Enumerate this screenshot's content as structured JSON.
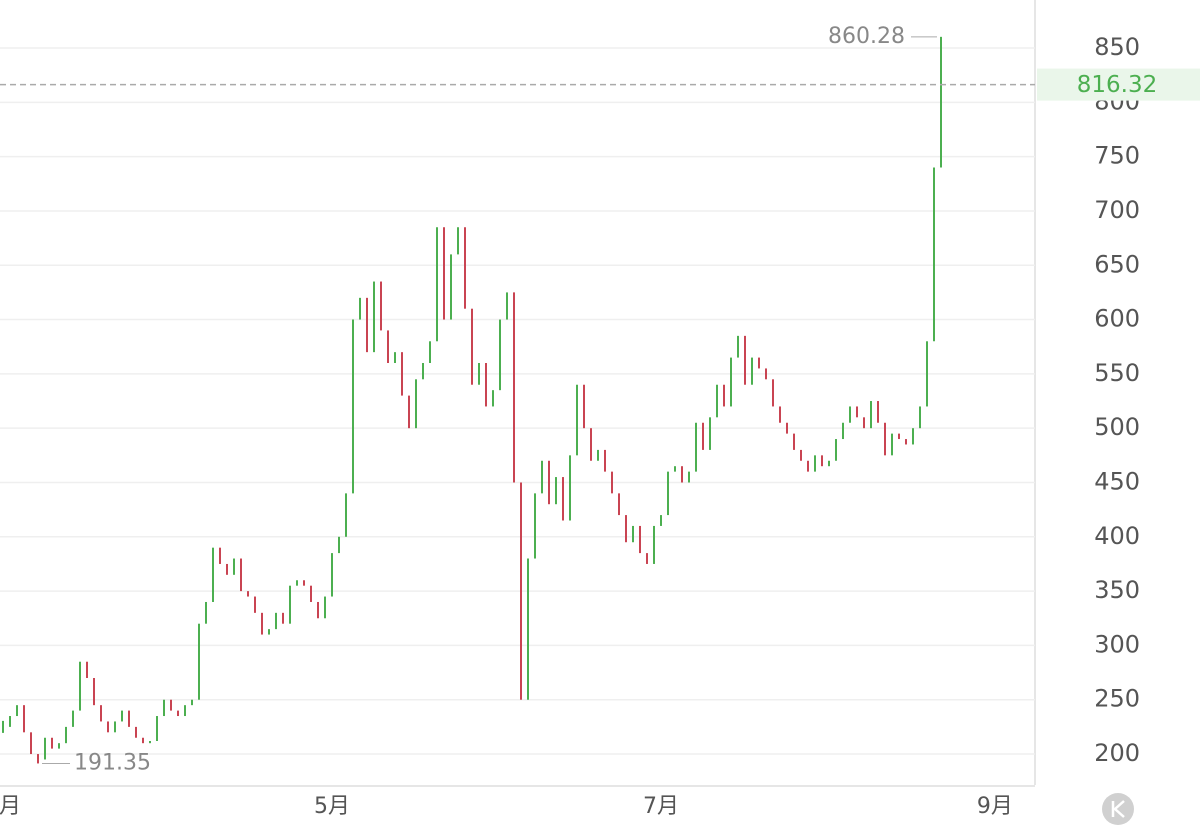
{
  "chart_data": {
    "type": "bar-chart",
    "values": [
      225,
      235,
      245,
      220,
      200,
      195,
      215,
      205,
      210,
      225,
      240,
      285,
      270,
      245,
      230,
      220,
      230,
      240,
      225,
      215,
      210,
      212,
      235,
      250,
      240,
      235,
      245,
      250,
      320,
      340,
      390,
      375,
      365,
      380,
      350,
      345,
      330,
      310,
      315,
      330,
      320,
      355,
      360,
      355,
      340,
      325,
      345,
      385,
      400,
      440,
      600,
      620,
      570,
      635,
      590,
      560,
      570,
      530,
      500,
      545,
      560,
      580,
      685,
      600,
      660,
      685,
      610,
      540,
      560,
      520,
      535,
      600,
      625,
      450,
      250,
      380,
      440,
      470,
      430,
      455,
      415,
      475,
      540,
      500,
      470,
      480,
      460,
      440,
      420,
      395,
      410,
      385,
      375,
      410,
      420,
      460,
      465,
      450,
      460,
      505,
      480,
      510,
      540,
      520,
      565,
      585,
      540,
      565,
      555,
      545,
      520,
      505,
      495,
      480,
      470,
      460,
      475,
      465,
      470,
      490,
      505,
      520,
      510,
      500,
      525,
      505,
      475,
      495,
      490,
      485,
      500,
      520,
      580,
      740,
      816.32
    ],
    "up_color": "#4caf50",
    "down_color": "#c94452",
    "high": {
      "value": 860.28,
      "index": 134
    },
    "low": {
      "value": 191.35,
      "index": 5
    },
    "last_price": 816.32,
    "ylim": [
      171.5,
      894.2
    ],
    "yticks": [
      200,
      250,
      300,
      350,
      400,
      450,
      500,
      550,
      600,
      650,
      700,
      750,
      800,
      850
    ],
    "xticks": [
      {
        "value": 1,
        "label": "月"
      },
      {
        "value": 47,
        "label": "5月"
      },
      {
        "value": 94,
        "label": "7月"
      },
      {
        "value": 141.7,
        "label": "9月"
      }
    ],
    "grid": true
  }
}
